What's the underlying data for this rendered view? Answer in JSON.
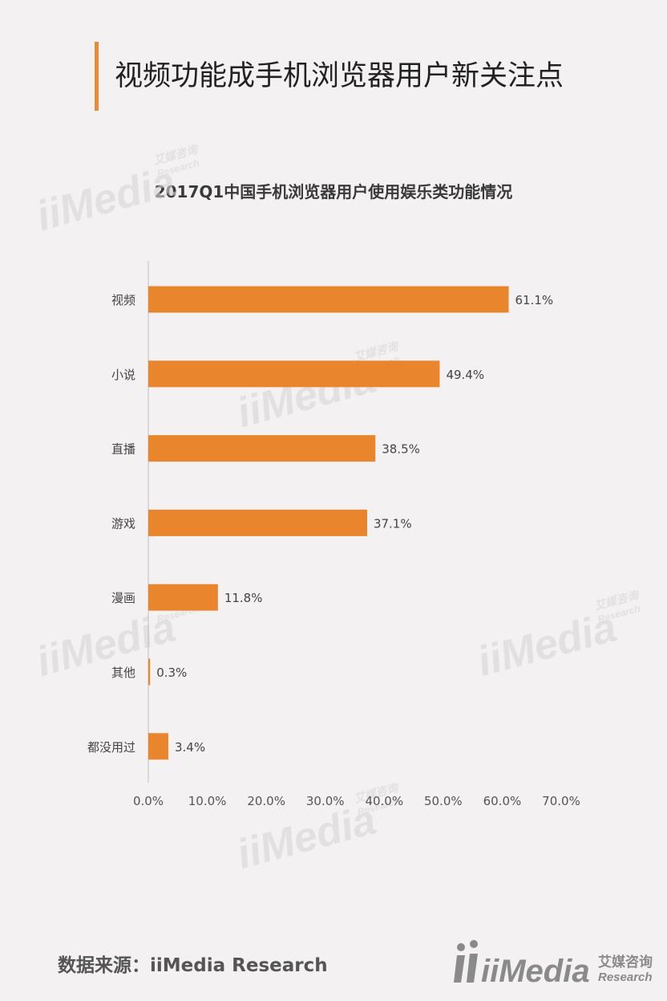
{
  "page": {
    "title": "视频功能成手机浏览器用户新关注点",
    "source": "数据来源：iiMedia Research"
  },
  "logo": {
    "brand": "iiMedia",
    "cn": "艾媒咨询",
    "en": "Research"
  },
  "colors": {
    "accent": "#e98b37",
    "bar": "#e8852d",
    "background": "#f4f1f2"
  },
  "chart_data": {
    "type": "bar",
    "orientation": "horizontal",
    "title": "2017Q1中国手机浏览器用户使用娱乐类功能情况",
    "categories": [
      "视频",
      "小说",
      "直播",
      "游戏",
      "漫画",
      "其他",
      "都没用过"
    ],
    "values": [
      61.1,
      49.4,
      38.5,
      37.1,
      11.8,
      0.3,
      3.4
    ],
    "value_labels": [
      "61.1%",
      "49.4%",
      "38.5%",
      "37.1%",
      "11.8%",
      "0.3%",
      "3.4%"
    ],
    "x_ticks": [
      "0.0%",
      "10.0%",
      "20.0%",
      "30.0%",
      "40.0%",
      "50.0%",
      "60.0%",
      "70.0%"
    ],
    "xlim": [
      0,
      70
    ],
    "grid": false,
    "legend": "none"
  }
}
